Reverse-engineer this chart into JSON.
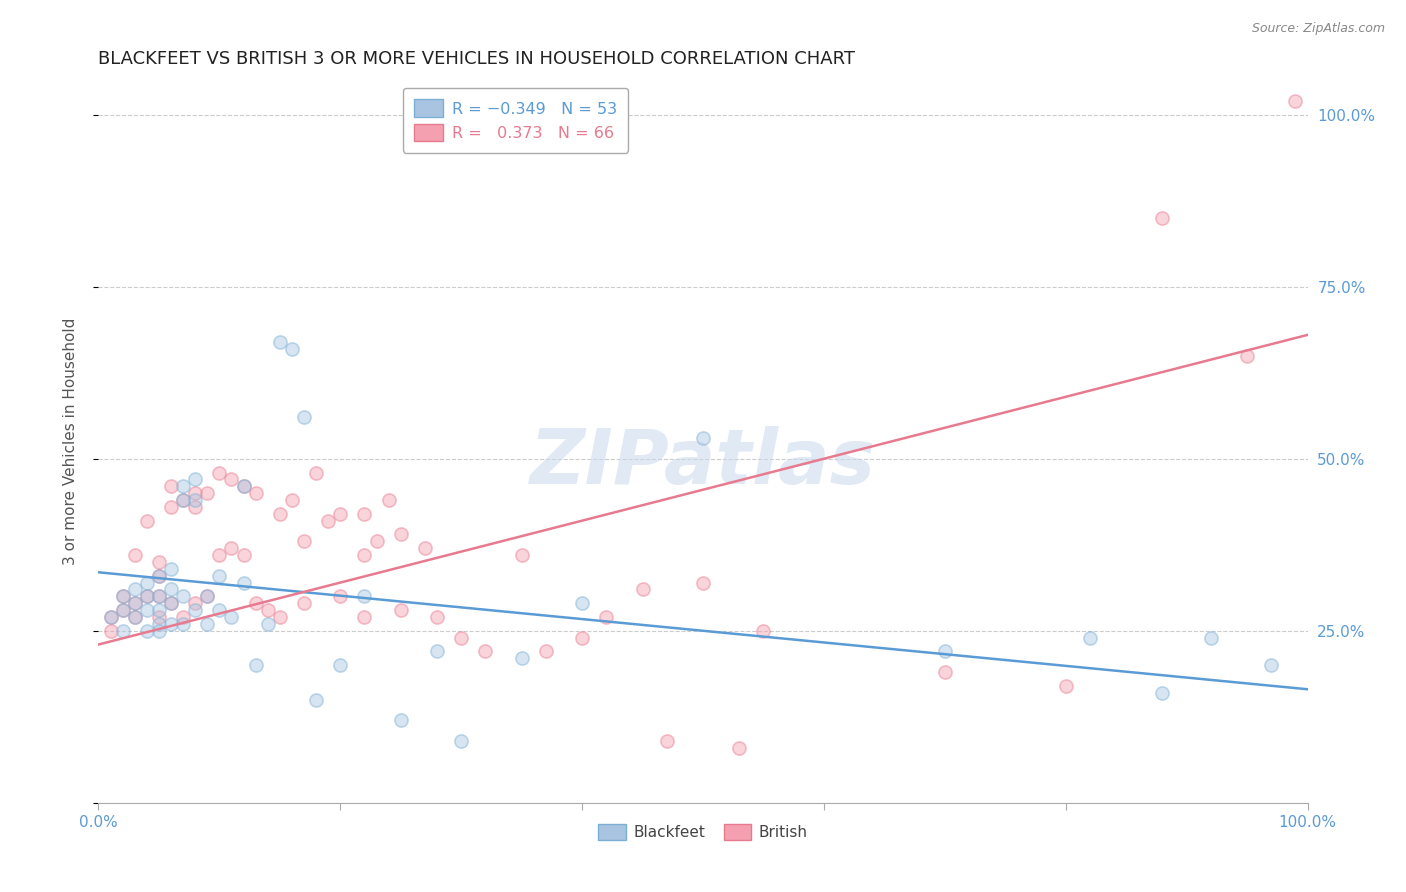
{
  "title": "BLACKFEET VS BRITISH 3 OR MORE VEHICLES IN HOUSEHOLD CORRELATION CHART",
  "source": "Source: ZipAtlas.com",
  "ylabel": "3 or more Vehicles in Household",
  "watermark": "ZIPatlas",
  "legend_lines": [
    {
      "label_r": "R = ",
      "label_rv": "-0.349",
      "label_n": "  N = ",
      "label_nv": "53",
      "color": "#a8c4e0"
    },
    {
      "label_r": "R =  ",
      "label_rv": "0.373",
      "label_n": "  N = ",
      "label_nv": "66",
      "color": "#f4a0b0"
    }
  ],
  "bottom_legend": [
    {
      "label": "Blackfeet",
      "color": "#a8c4e0"
    },
    {
      "label": "British",
      "color": "#f4a0b0"
    }
  ],
  "xmin": 0.0,
  "xmax": 1.0,
  "ymin": 0.0,
  "ymax": 1.05,
  "yticks": [
    0.0,
    0.25,
    0.5,
    0.75,
    1.0
  ],
  "ytick_labels": [
    "",
    "25.0%",
    "50.0%",
    "75.0%",
    "100.0%"
  ],
  "xticks": [
    0.0,
    0.2,
    0.4,
    0.6,
    0.8,
    1.0
  ],
  "xtick_labels": [
    "0.0%",
    "",
    "",
    "",
    "",
    "100.0%"
  ],
  "blue_color": "#a8c4e0",
  "pink_color": "#f4a0b0",
  "blue_edge_color": "#7bafd4",
  "pink_edge_color": "#e87a8f",
  "blue_line_color": "#5b9bd5",
  "pink_line_color": "#e87a8f",
  "blue_scatter_x": [
    0.01,
    0.02,
    0.02,
    0.02,
    0.03,
    0.03,
    0.03,
    0.04,
    0.04,
    0.04,
    0.04,
    0.05,
    0.05,
    0.05,
    0.05,
    0.05,
    0.06,
    0.06,
    0.06,
    0.06,
    0.07,
    0.07,
    0.07,
    0.07,
    0.08,
    0.08,
    0.08,
    0.09,
    0.09,
    0.1,
    0.1,
    0.11,
    0.12,
    0.12,
    0.13,
    0.14,
    0.15,
    0.16,
    0.17,
    0.18,
    0.2,
    0.22,
    0.25,
    0.28,
    0.3,
    0.35,
    0.4,
    0.5,
    0.7,
    0.82,
    0.88,
    0.92,
    0.97
  ],
  "blue_scatter_y": [
    0.27,
    0.3,
    0.28,
    0.25,
    0.31,
    0.29,
    0.27,
    0.32,
    0.3,
    0.28,
    0.25,
    0.33,
    0.3,
    0.28,
    0.26,
    0.25,
    0.34,
    0.31,
    0.29,
    0.26,
    0.44,
    0.46,
    0.3,
    0.26,
    0.44,
    0.47,
    0.28,
    0.3,
    0.26,
    0.33,
    0.28,
    0.27,
    0.46,
    0.32,
    0.2,
    0.26,
    0.67,
    0.66,
    0.56,
    0.15,
    0.2,
    0.3,
    0.12,
    0.22,
    0.09,
    0.21,
    0.29,
    0.53,
    0.22,
    0.24,
    0.16,
    0.24,
    0.2
  ],
  "pink_scatter_x": [
    0.01,
    0.01,
    0.02,
    0.02,
    0.03,
    0.03,
    0.03,
    0.04,
    0.04,
    0.05,
    0.05,
    0.05,
    0.05,
    0.06,
    0.06,
    0.06,
    0.07,
    0.07,
    0.08,
    0.08,
    0.08,
    0.09,
    0.09,
    0.1,
    0.1,
    0.11,
    0.11,
    0.12,
    0.12,
    0.13,
    0.13,
    0.14,
    0.15,
    0.15,
    0.16,
    0.17,
    0.17,
    0.18,
    0.19,
    0.2,
    0.2,
    0.22,
    0.22,
    0.22,
    0.23,
    0.24,
    0.25,
    0.25,
    0.27,
    0.28,
    0.3,
    0.32,
    0.35,
    0.37,
    0.4,
    0.42,
    0.45,
    0.47,
    0.5,
    0.53,
    0.55,
    0.7,
    0.8,
    0.88,
    0.95,
    0.99
  ],
  "pink_scatter_y": [
    0.27,
    0.25,
    0.3,
    0.28,
    0.36,
    0.29,
    0.27,
    0.41,
    0.3,
    0.35,
    0.33,
    0.3,
    0.27,
    0.46,
    0.43,
    0.29,
    0.44,
    0.27,
    0.45,
    0.43,
    0.29,
    0.45,
    0.3,
    0.48,
    0.36,
    0.47,
    0.37,
    0.46,
    0.36,
    0.45,
    0.29,
    0.28,
    0.42,
    0.27,
    0.44,
    0.38,
    0.29,
    0.48,
    0.41,
    0.42,
    0.3,
    0.27,
    0.42,
    0.36,
    0.38,
    0.44,
    0.39,
    0.28,
    0.37,
    0.27,
    0.24,
    0.22,
    0.36,
    0.22,
    0.24,
    0.27,
    0.31,
    0.09,
    0.32,
    0.08,
    0.25,
    0.19,
    0.17,
    0.85,
    0.65,
    1.02
  ],
  "blue_line_x": [
    0.0,
    1.0
  ],
  "blue_line_y": [
    0.335,
    0.165
  ],
  "pink_line_x": [
    0.0,
    1.0
  ],
  "pink_line_y": [
    0.23,
    0.68
  ],
  "background_color": "#ffffff",
  "grid_color": "#cccccc",
  "tick_label_color": "#5b9bd5",
  "title_fontsize": 13,
  "axis_label_fontsize": 11,
  "tick_fontsize": 11,
  "scatter_size": 90,
  "scatter_alpha": 0.45,
  "line_width": 1.8
}
